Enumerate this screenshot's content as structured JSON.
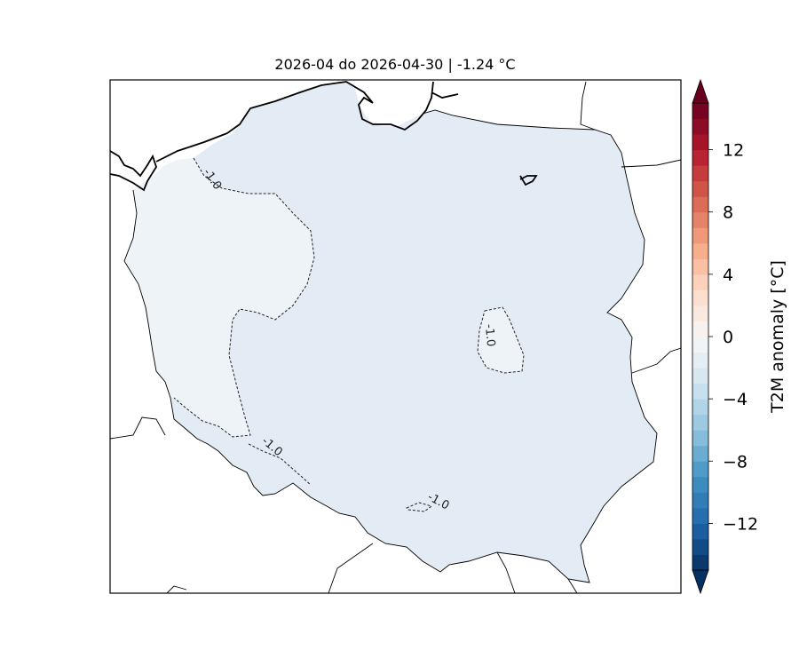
{
  "title": "2026-04 do 2026-04-30 | -1.24 °C",
  "colorbar": {
    "label": "T2M anomaly [°C]",
    "range": [
      -15,
      15
    ],
    "step": 1,
    "ticks": [
      {
        "value": 12,
        "label": "12"
      },
      {
        "value": 8,
        "label": "8"
      },
      {
        "value": 4,
        "label": "4"
      },
      {
        "value": 0,
        "label": "0"
      },
      {
        "value": -4,
        "label": "−4"
      },
      {
        "value": -8,
        "label": "−8"
      },
      {
        "value": -12,
        "label": "−12"
      }
    ],
    "colors": {
      "max": "#67001f",
      "min": "#053061"
    }
  },
  "map": {
    "fill_main": "#e3ecf5",
    "fill_warm": "#eef3f8",
    "contour_labels": [
      "-1.0",
      "-1.0",
      "-1.0",
      "-1.0"
    ]
  }
}
